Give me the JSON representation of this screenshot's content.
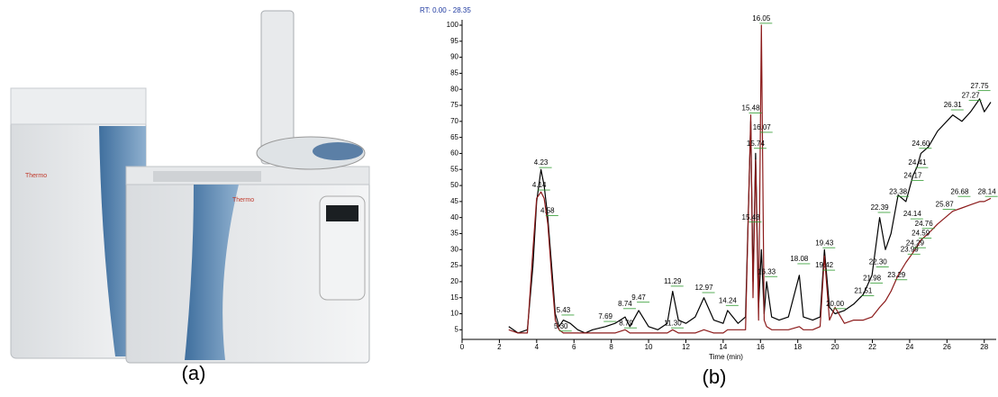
{
  "photo": {
    "brand": "Thermo",
    "panel_label": "(a)"
  },
  "chart_data": {
    "type": "line",
    "subtitle": "RT: 0.00 - 28.35",
    "x_label": "Time (min)",
    "panel_label": "(b)",
    "x": [
      2.5,
      3.0,
      3.5,
      3.8,
      4.0,
      4.23,
      4.4,
      4.6,
      4.8,
      5.0,
      5.2,
      5.43,
      5.8,
      6.2,
      6.6,
      7.0,
      7.69,
      8.2,
      8.74,
      9.0,
      9.47,
      10.0,
      10.5,
      11.0,
      11.29,
      11.6,
      12.0,
      12.5,
      12.97,
      13.5,
      14.0,
      14.24,
      14.8,
      15.2,
      15.48,
      15.6,
      15.74,
      15.9,
      16.05,
      16.2,
      16.33,
      16.6,
      17.0,
      17.5,
      18.08,
      18.3,
      18.8,
      19.2,
      19.43,
      19.7,
      20.0,
      20.5,
      21.0,
      21.51,
      21.98,
      22.39,
      22.7,
      23.0,
      23.38,
      23.8,
      24.17,
      24.41,
      24.6,
      25.0,
      25.5,
      26.31,
      26.8,
      27.27,
      27.75,
      28.0,
      28.35
    ],
    "series": [
      {
        "color": "#000000",
        "values": [
          6,
          4,
          5,
          25,
          45,
          55,
          50,
          40,
          25,
          10,
          6,
          8,
          7,
          5,
          4,
          5,
          6,
          7,
          9,
          6,
          11,
          6,
          5,
          7,
          17,
          8,
          7,
          9,
          15,
          8,
          7,
          11,
          7,
          9,
          70,
          20,
          60,
          12,
          30,
          10,
          20,
          9,
          8,
          9,
          22,
          9,
          8,
          9,
          30,
          12,
          10,
          11,
          13,
          16,
          22,
          40,
          30,
          35,
          47,
          45,
          53,
          56,
          60,
          62,
          67,
          72,
          70,
          73,
          77,
          73,
          76
        ]
      },
      {
        "color": "#8b1a1a",
        "values": [
          5,
          4,
          4,
          30,
          46,
          48,
          46,
          38,
          22,
          8,
          5,
          4,
          4,
          4,
          4,
          4,
          4,
          4,
          5,
          4,
          4,
          4,
          4,
          4,
          5,
          4,
          4,
          4,
          5,
          4,
          4,
          5,
          5,
          5,
          72,
          15,
          58,
          8,
          100,
          8,
          6,
          5,
          5,
          5,
          6,
          5,
          5,
          6,
          28,
          8,
          12,
          7,
          8,
          8,
          9,
          12,
          14,
          17,
          22,
          26,
          29,
          31,
          33,
          35,
          38,
          42,
          43,
          44,
          45,
          45,
          46
        ]
      }
    ],
    "annotations": [
      {
        "label": "4.23",
        "x": 4.23,
        "y": 57
      },
      {
        "label": "4.14",
        "x": 4.14,
        "y": 50
      },
      {
        "label": "4.58",
        "x": 4.58,
        "y": 42
      },
      {
        "label": "5.43",
        "x": 5.43,
        "y": 11
      },
      {
        "label": "5.30",
        "x": 5.3,
        "y": 6
      },
      {
        "label": "7.69",
        "x": 7.69,
        "y": 9
      },
      {
        "label": "8.74",
        "x": 8.74,
        "y": 13
      },
      {
        "label": "8.79",
        "x": 8.79,
        "y": 7
      },
      {
        "label": "9.47",
        "x": 9.47,
        "y": 15
      },
      {
        "label": "11.29",
        "x": 11.29,
        "y": 20
      },
      {
        "label": "11.30",
        "x": 11.3,
        "y": 7
      },
      {
        "label": "12.97",
        "x": 12.97,
        "y": 18
      },
      {
        "label": "14.24",
        "x": 14.24,
        "y": 14
      },
      {
        "label": "15.48",
        "x": 15.48,
        "y": 74
      },
      {
        "label": "15.74",
        "x": 15.74,
        "y": 63
      },
      {
        "label": "16.05",
        "x": 16.05,
        "y": 102
      },
      {
        "label": "16.07",
        "x": 16.07,
        "y": 68
      },
      {
        "label": "15.48",
        "x": 15.48,
        "y": 40
      },
      {
        "label": "16.33",
        "x": 16.33,
        "y": 23
      },
      {
        "label": "18.08",
        "x": 18.08,
        "y": 27
      },
      {
        "label": "19.43",
        "x": 19.43,
        "y": 32
      },
      {
        "label": "19.42",
        "x": 19.42,
        "y": 25
      },
      {
        "label": "20.00",
        "x": 20.0,
        "y": 13
      },
      {
        "label": "21.51",
        "x": 21.51,
        "y": 17
      },
      {
        "label": "21.98",
        "x": 21.98,
        "y": 21
      },
      {
        "label": "22.30",
        "x": 22.3,
        "y": 26
      },
      {
        "label": "22.39",
        "x": 22.39,
        "y": 43
      },
      {
        "label": "23.29",
        "x": 23.29,
        "y": 22
      },
      {
        "label": "23.99",
        "x": 23.99,
        "y": 30
      },
      {
        "label": "23.38",
        "x": 23.38,
        "y": 48
      },
      {
        "label": "24.17",
        "x": 24.17,
        "y": 53
      },
      {
        "label": "24.41",
        "x": 24.41,
        "y": 57
      },
      {
        "label": "24.60",
        "x": 24.6,
        "y": 63
      },
      {
        "label": "24.14",
        "x": 24.14,
        "y": 41
      },
      {
        "label": "24.76",
        "x": 24.76,
        "y": 38
      },
      {
        "label": "24.59",
        "x": 24.59,
        "y": 35
      },
      {
        "label": "24.29",
        "x": 24.29,
        "y": 32
      },
      {
        "label": "25.87",
        "x": 25.87,
        "y": 44
      },
      {
        "label": "26.68",
        "x": 26.68,
        "y": 48
      },
      {
        "label": "26.31",
        "x": 26.31,
        "y": 75
      },
      {
        "label": "27.27",
        "x": 27.27,
        "y": 78
      },
      {
        "label": "27.75",
        "x": 27.75,
        "y": 81
      },
      {
        "label": "28.14",
        "x": 28.14,
        "y": 48
      }
    ],
    "xlim": [
      0,
      28.35
    ],
    "xticks": [
      0,
      2,
      4,
      6,
      8,
      10,
      12,
      14,
      16,
      18,
      20,
      22,
      24,
      26,
      28
    ],
    "ylim": [
      2,
      100
    ],
    "yticks": [
      5,
      10,
      15,
      20,
      25,
      30,
      35,
      40,
      45,
      50,
      55,
      60,
      65,
      70,
      75,
      80,
      85,
      90,
      95,
      100
    ]
  }
}
